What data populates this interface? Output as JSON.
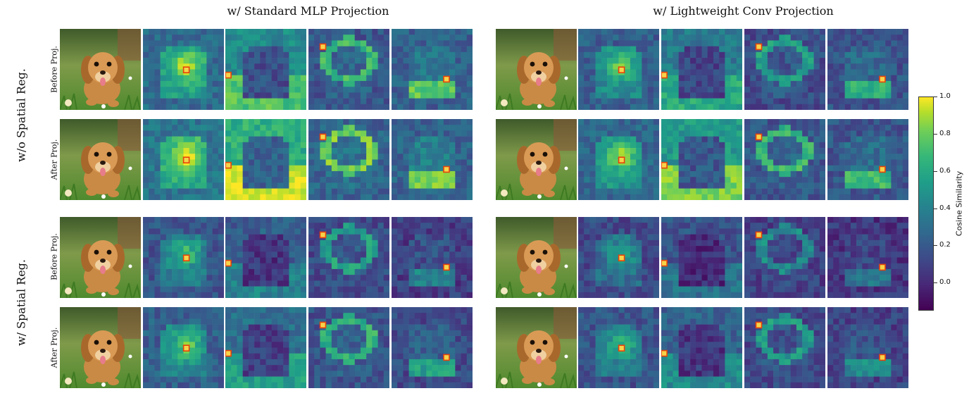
{
  "column_titles": [
    "w/ Standard MLP Projection",
    "w/ Lightweight Conv Projection"
  ],
  "row_group_labels": [
    "w/o Spatial Reg.",
    "w/ Spatial Reg."
  ],
  "row_labels": [
    "Before Proj.",
    "After Proj.",
    "Before Proj.",
    "After Proj."
  ],
  "photo_subject": "puppy-photo",
  "colorbar": {
    "title": "Cosine Similarity",
    "ticks": [
      "1.0",
      "0.8",
      "0.6",
      "0.4",
      "0.2",
      "0.0"
    ],
    "tick_values": [
      1.0,
      0.8,
      0.6,
      0.4,
      0.2,
      0.0
    ],
    "range": [
      -0.15,
      1.0
    ],
    "colormap": [
      "#440154",
      "#482878",
      "#3e4a89",
      "#31688e",
      "#26828e",
      "#1f9e89",
      "#35b779",
      "#6ece58",
      "#b5de2b",
      "#fde725"
    ]
  },
  "marker_color": "#e8420a"
}
